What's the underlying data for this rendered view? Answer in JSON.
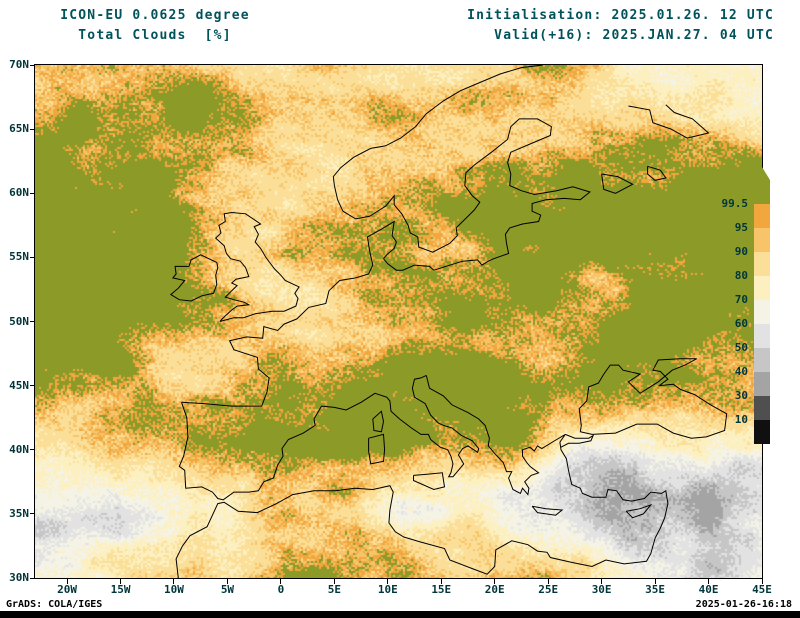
{
  "header": {
    "model_line": "ICON-EU 0.0625 degree",
    "param_line": "Total Clouds  [%]",
    "init_line": "Initialisation: 2025.01.26. 12 UTC",
    "valid_line": "Valid(+16): 2025.JAN.27. 04 UTC"
  },
  "footer": {
    "left": "GrADS: COLA/IGES",
    "right": "2025-01-26-16:18"
  },
  "map": {
    "lat_tick_labels": [
      "70N",
      "65N",
      "60N",
      "55N",
      "50N",
      "45N",
      "40N",
      "35N",
      "30N"
    ],
    "lat_tick_values": [
      70,
      65,
      60,
      55,
      50,
      45,
      40,
      35,
      30
    ],
    "lon_tick_labels": [
      "20W",
      "15W",
      "10W",
      "5W",
      "0",
      "5E",
      "10E",
      "15E",
      "20E",
      "25E",
      "30E",
      "35E",
      "40E",
      "45E"
    ],
    "lon_tick_values": [
      -20,
      -15,
      -10,
      -5,
      0,
      5,
      10,
      15,
      20,
      25,
      30,
      35,
      40,
      45
    ],
    "lon_range": [
      -23,
      45
    ],
    "lat_range": [
      30,
      70
    ],
    "quantity": "Total cloud cover percent"
  },
  "colorbar": {
    "labels": [
      "99.5",
      "95",
      "90",
      "80",
      "70",
      "60",
      "50",
      "40",
      "30",
      "10"
    ],
    "levels": [
      99.5,
      95,
      90,
      80,
      70,
      60,
      50,
      40,
      30,
      10
    ],
    "colors": [
      "#8c9a28",
      "#f2a73e",
      "#f7c469",
      "#fbdf98",
      "#fdf0c0",
      "#f4f3e6",
      "#e2e2e2",
      "#c6c6c6",
      "#a4a4a4",
      "#4f4f4f",
      "#101010"
    ]
  },
  "theme": {
    "title_color": "#00535a",
    "overcast_olive": "#8c9a28",
    "frame_color": "#000000"
  }
}
